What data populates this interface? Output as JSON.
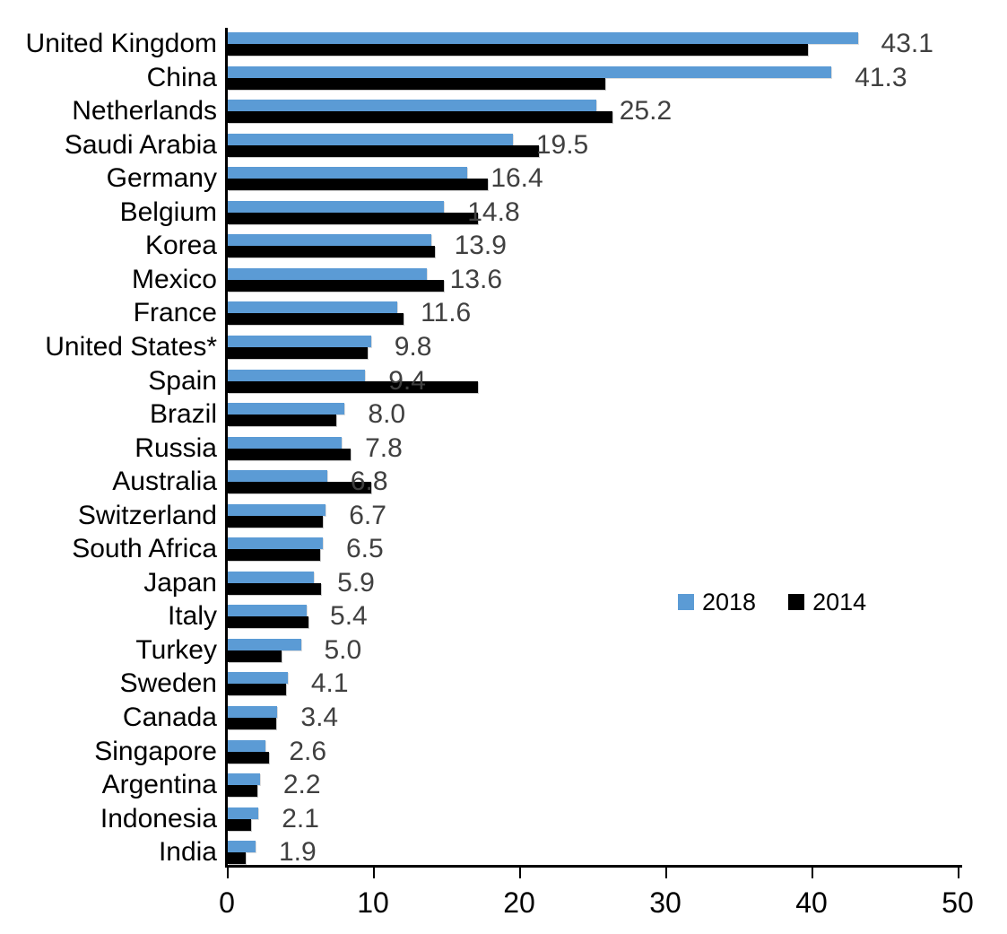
{
  "chart_data": {
    "type": "bar",
    "orientation": "horizontal",
    "title": "",
    "xlabel": "",
    "ylabel": "",
    "xlim": [
      0,
      50
    ],
    "x_ticks": [
      "0",
      "10",
      "20",
      "30",
      "40",
      "50"
    ],
    "grid": false,
    "legend_position": "middle-right",
    "categories": [
      "United Kingdom",
      "China",
      "Netherlands",
      "Saudi Arabia",
      "Germany",
      "Belgium",
      "Korea",
      "Mexico",
      "France",
      "United States*",
      "Spain",
      "Brazil",
      "Russia",
      "Australia",
      "Switzerland",
      "South Africa",
      "Japan",
      "Italy",
      "Turkey",
      "Sweden",
      "Canada",
      "Singapore",
      "Argentina",
      "Indonesia",
      "India"
    ],
    "series": [
      {
        "name": "2018",
        "color": "#5B9BD5",
        "values": [
          43.1,
          41.3,
          25.2,
          19.5,
          16.4,
          14.8,
          13.9,
          13.6,
          11.6,
          9.8,
          9.4,
          8.0,
          7.8,
          6.8,
          6.7,
          6.5,
          5.9,
          5.4,
          5.0,
          4.1,
          3.4,
          2.6,
          2.2,
          2.1,
          1.9
        ]
      },
      {
        "name": "2014",
        "color": "#000000",
        "values": [
          39.7,
          25.8,
          26.3,
          21.3,
          17.8,
          17.1,
          14.2,
          14.8,
          12.0,
          9.6,
          17.1,
          7.4,
          8.4,
          9.8,
          6.5,
          6.3,
          6.4,
          5.5,
          3.7,
          4.0,
          3.3,
          2.8,
          2.0,
          1.6,
          1.2
        ]
      }
    ],
    "data_labels": {
      "series": "2018",
      "color": "#404040",
      "values": [
        "43.1",
        "41.3",
        "25.2",
        "19.5",
        "16.4",
        "14.8",
        "13.9",
        "13.6",
        "11.6",
        "9.8",
        "9.4",
        "8.0",
        "7.8",
        "6.8",
        "6.7",
        "6.5",
        "5.9",
        "5.4",
        "5.0",
        "4.1",
        "3.4",
        "2.6",
        "2.2",
        "2.1",
        "1.9"
      ]
    }
  },
  "legend": {
    "items": [
      {
        "label": "2018",
        "color": "#5B9BD5"
      },
      {
        "label": "2014",
        "color": "#000000"
      }
    ]
  },
  "colors": {
    "background": "#FFFFFF",
    "axis": "#000000",
    "category_label": "#000000",
    "value_label": "#404040"
  }
}
